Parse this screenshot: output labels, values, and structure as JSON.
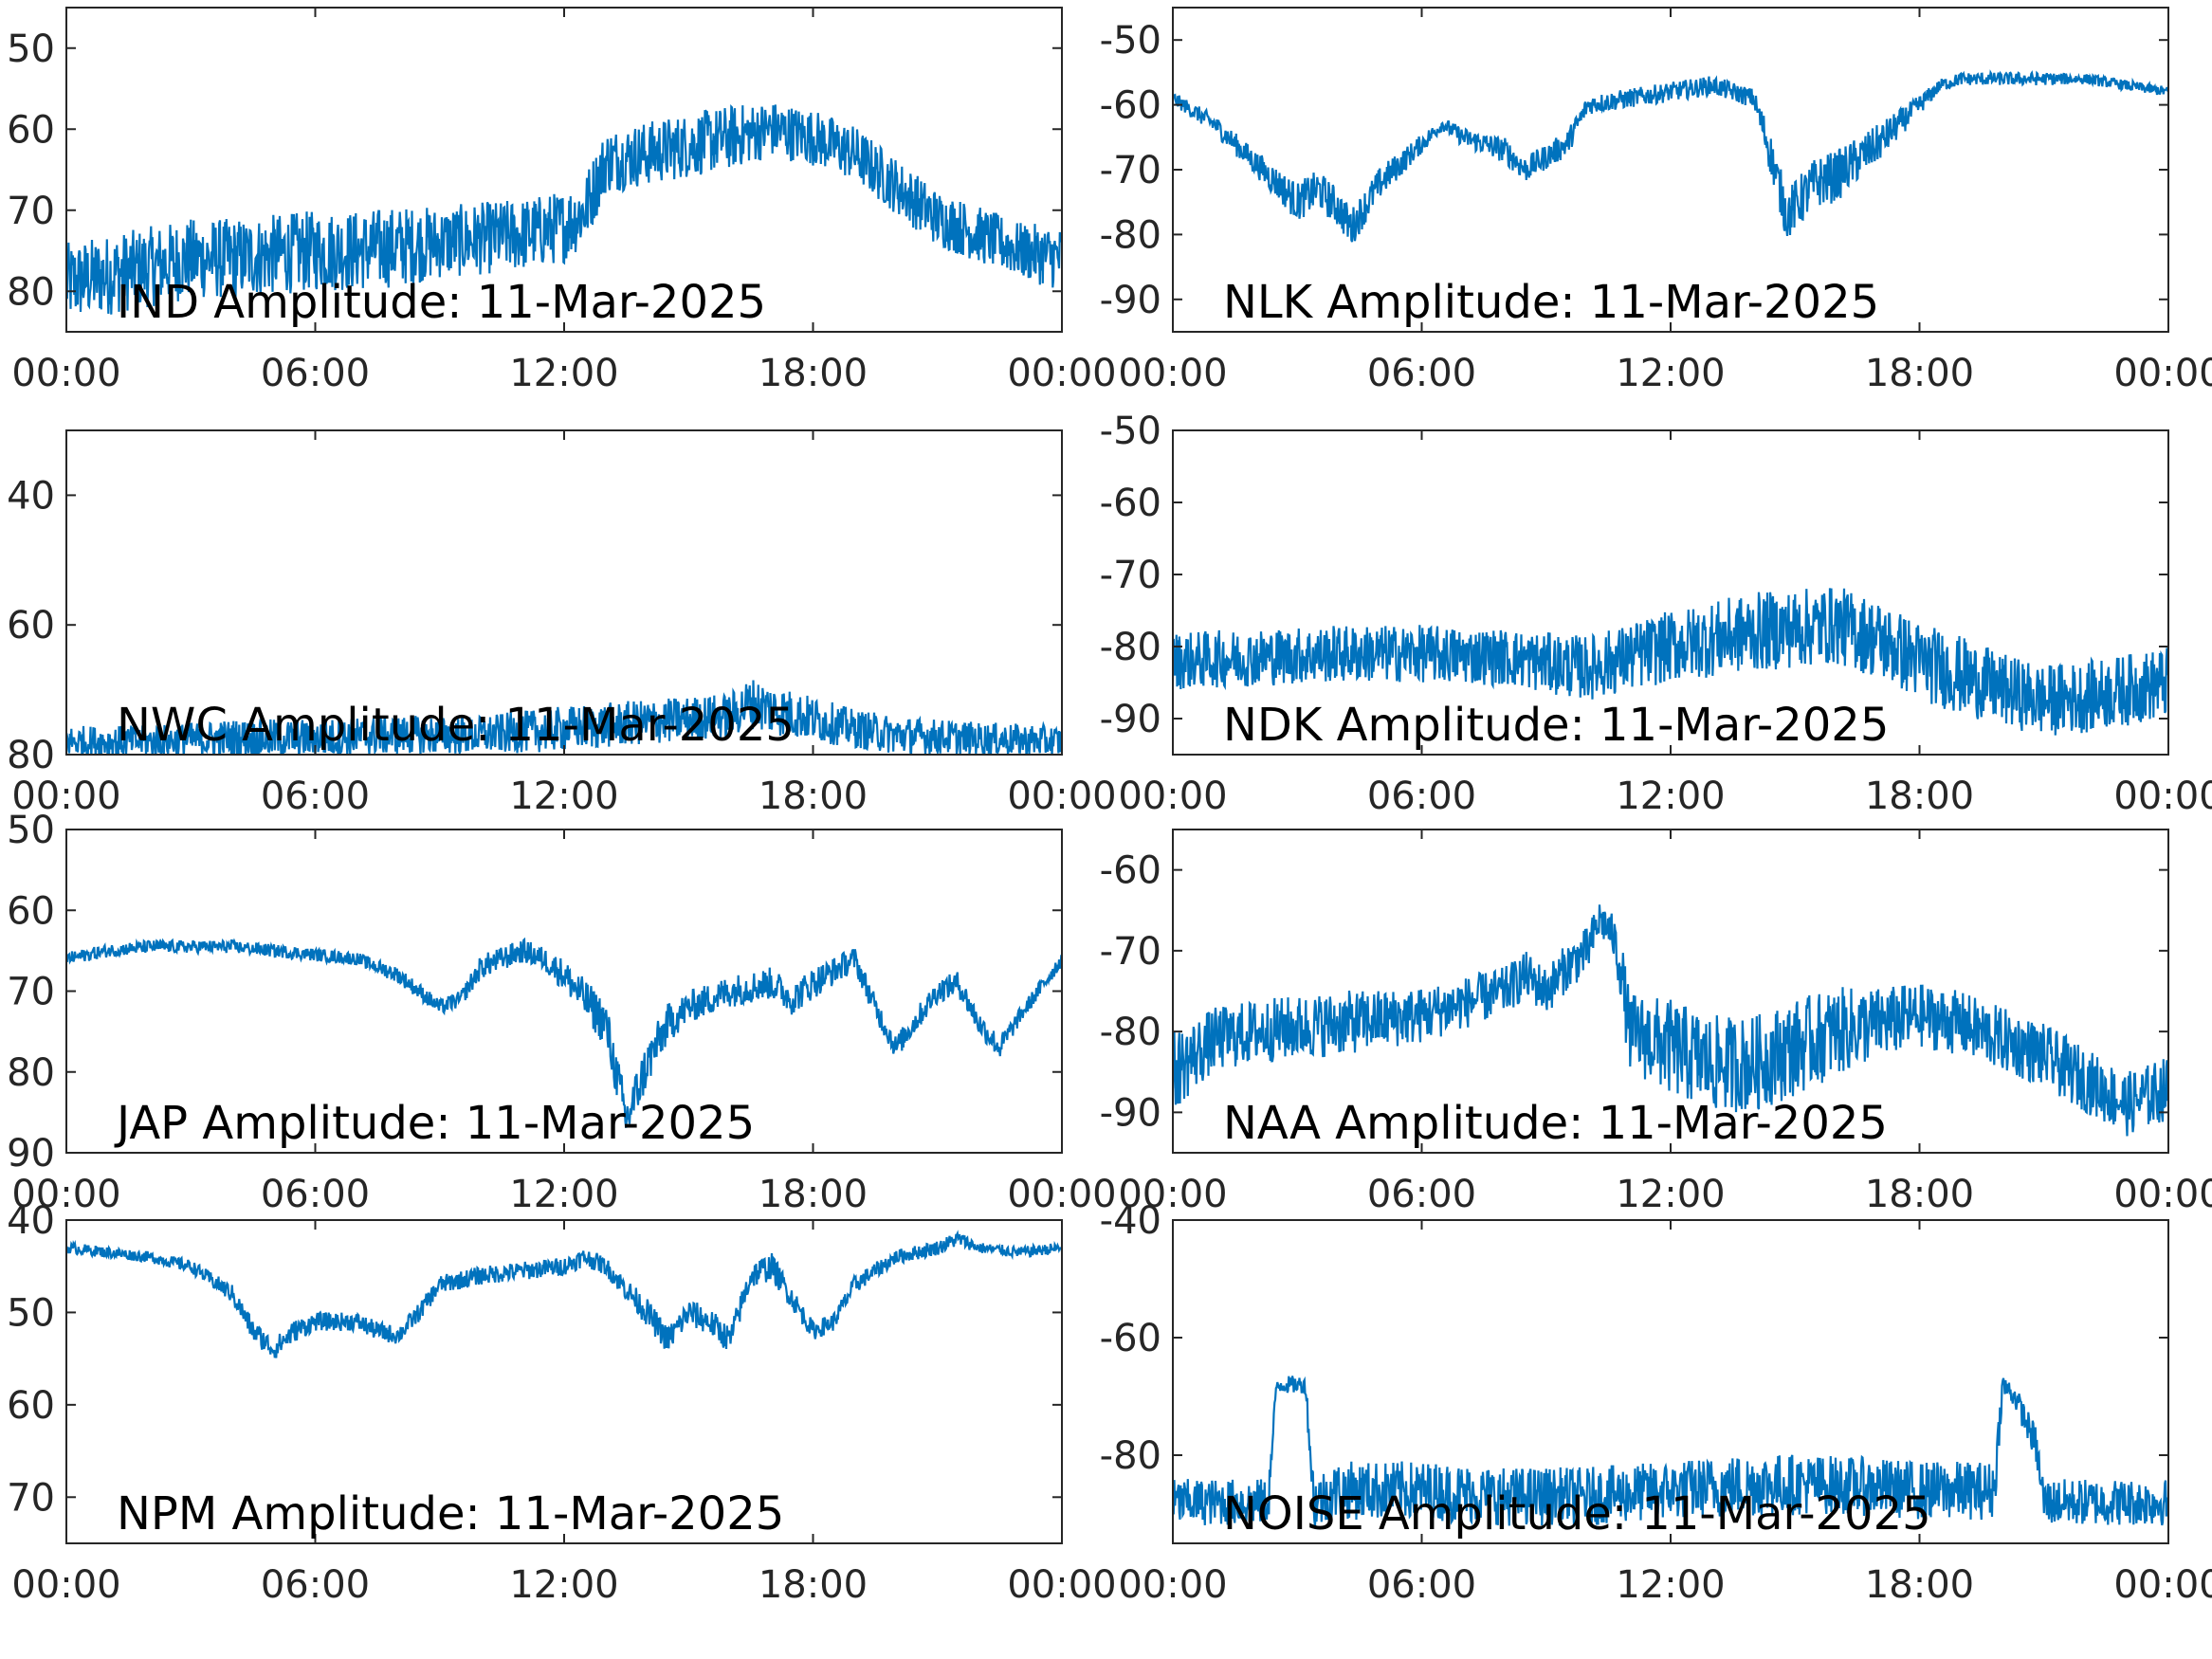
{
  "style": {
    "line_color": "#0072BD",
    "axes_color": "#262626",
    "background": "#ffffff"
  },
  "chart_data": [
    {
      "type": "line",
      "title": "IND Amplitude: 11-Mar-2025",
      "xlabel": "",
      "ylabel": "",
      "x_ticks": [
        "00:00",
        "06:00",
        "12:00",
        "18:00",
        "00:00"
      ],
      "xlim_hours": [
        0,
        24
      ],
      "ylim": [
        -85,
        -45
      ],
      "y_ticks": [
        -80,
        -70,
        -60,
        -50
      ],
      "y_tick_labels": [
        "80",
        "70",
        "60",
        "50"
      ],
      "series": [
        {
          "x_hours": [
            0,
            1,
            2,
            3,
            4,
            5,
            6,
            7,
            8,
            9,
            10,
            11,
            12,
            12.5,
            13,
            14,
            15,
            16,
            17,
            18,
            19,
            20,
            21,
            22,
            23,
            24
          ],
          "center": [
            -79,
            -78,
            -77,
            -76,
            -76,
            -75.5,
            -75,
            -75,
            -74.5,
            -74,
            -73.5,
            -73,
            -72,
            -70,
            -64,
            -63,
            -62,
            -61,
            -60,
            -61,
            -63,
            -67,
            -71,
            -73,
            -75,
            -76
          ],
          "spread": [
            5,
            5,
            5,
            5,
            5,
            5,
            5,
            5,
            5,
            4.5,
            4.5,
            4.5,
            4.5,
            4.5,
            4,
            4,
            4,
            4,
            3.5,
            3.5,
            3.5,
            3.5,
            3.5,
            3.5,
            3.5,
            4
          ]
        }
      ],
      "grid": false
    },
    {
      "type": "line",
      "title": "NLK Amplitude: 11-Mar-2025",
      "xlabel": "",
      "ylabel": "",
      "x_ticks": [
        "00:00",
        "06:00",
        "12:00",
        "18:00",
        "00:00"
      ],
      "xlim_hours": [
        0,
        24
      ],
      "ylim": [
        -95,
        -45
      ],
      "y_ticks": [
        -90,
        -80,
        -70,
        -60,
        -50
      ],
      "y_tick_labels": [
        "-90",
        "-80",
        "-70",
        "-60",
        "-50"
      ],
      "series": [
        {
          "x_hours": [
            0,
            1,
            2,
            3,
            3.5,
            4,
            4.3,
            5,
            6,
            6.5,
            7,
            8,
            8.5,
            9,
            9.5,
            10,
            11,
            12,
            13,
            14,
            14.3,
            14.8,
            15.5,
            16,
            17,
            18,
            18.5,
            19,
            20,
            21,
            22,
            23,
            24
          ],
          "center": [
            -59,
            -63,
            -69,
            -75,
            -73,
            -76,
            -79,
            -72,
            -66,
            -63,
            -65,
            -67,
            -70,
            -68,
            -66,
            -60,
            -59,
            -58,
            -57,
            -59,
            -65,
            -77,
            -72,
            -71,
            -66,
            -60,
            -57,
            -56,
            -56,
            -56,
            -56,
            -57,
            -58
          ],
          "spread": [
            1,
            1.5,
            2,
            3,
            3,
            3,
            3,
            2.5,
            1.5,
            1,
            1.5,
            2,
            2,
            2,
            2,
            1.5,
            1.5,
            1.5,
            1.5,
            1.5,
            3,
            4,
            4,
            4,
            3,
            1.5,
            1,
            1,
            1,
            1,
            0.8,
            0.8,
            0.8
          ]
        }
      ],
      "grid": false
    },
    {
      "type": "line",
      "title": "NWC Amplitude: 11-Mar-2025",
      "xlabel": "",
      "ylabel": "",
      "x_ticks": [
        "00:00",
        "06:00",
        "12:00",
        "18:00",
        "00:00"
      ],
      "xlim_hours": [
        0,
        24
      ],
      "ylim": [
        -80,
        -30
      ],
      "y_ticks": [
        -80,
        -60,
        -40
      ],
      "y_tick_labels": [
        "80",
        "60",
        "40"
      ],
      "series": [
        {
          "x_hours": [
            0,
            2,
            4,
            6,
            8,
            10,
            12,
            14,
            15,
            16,
            16.5,
            17,
            18,
            19,
            20,
            22,
            24
          ],
          "center": [
            -78,
            -78,
            -77.5,
            -77.5,
            -77,
            -77,
            -76,
            -75,
            -74.5,
            -74,
            -72,
            -73,
            -74.5,
            -76,
            -77,
            -77.5,
            -78
          ],
          "spread": [
            2.5,
            2.5,
            3,
            3,
            3,
            3,
            3.5,
            3.5,
            3.5,
            3.5,
            4,
            4,
            3.5,
            3,
            3,
            2.5,
            2.5
          ]
        }
      ],
      "grid": false
    },
    {
      "type": "line",
      "title": "NDK Amplitude: 11-Mar-2025",
      "xlabel": "",
      "ylabel": "",
      "x_ticks": [
        "00:00",
        "06:00",
        "12:00",
        "18:00",
        "00:00"
      ],
      "xlim_hours": [
        0,
        24
      ],
      "ylim": [
        -95,
        -50
      ],
      "y_ticks": [
        -90,
        -80,
        -70,
        -60,
        -50
      ],
      "y_tick_labels": [
        "-90",
        "-80",
        "-70",
        "-60",
        "-50"
      ],
      "series": [
        {
          "x_hours": [
            0,
            2,
            4,
            6,
            8,
            10,
            12,
            14,
            16,
            17,
            18,
            19,
            20,
            21,
            22,
            23,
            24
          ],
          "center": [
            -82,
            -81.5,
            -81,
            -81,
            -81.5,
            -83,
            -80,
            -78,
            -77,
            -79,
            -82,
            -84,
            -86,
            -87.5,
            -87,
            -86,
            -85
          ],
          "spread": [
            4,
            4,
            4,
            4,
            4,
            4.5,
            5,
            5.5,
            5.5,
            5.5,
            5.5,
            5.5,
            5,
            5,
            5,
            5,
            5
          ]
        }
      ],
      "grid": false
    },
    {
      "type": "line",
      "title": "JAP Amplitude: 11-Mar-2025",
      "xlabel": "",
      "ylabel": "",
      "x_ticks": [
        "00:00",
        "06:00",
        "12:00",
        "18:00",
        "00:00"
      ],
      "xlim_hours": [
        0,
        24
      ],
      "ylim": [
        -90,
        -50
      ],
      "y_ticks": [
        -90,
        -80,
        -70,
        -60,
        -50
      ],
      "y_tick_labels": [
        "90",
        "80",
        "70",
        "60",
        "50"
      ],
      "series": [
        {
          "x_hours": [
            0,
            1,
            2,
            3,
            4,
            5,
            6,
            7,
            8,
            9,
            9.5,
            10,
            11,
            11.5,
            12,
            13,
            13.5,
            14,
            14.5,
            15,
            16,
            17,
            17.5,
            18,
            19,
            19.5,
            20,
            21,
            21.5,
            22,
            22.5,
            23,
            24
          ],
          "center": [
            -66,
            -65,
            -64.5,
            -64.5,
            -64.5,
            -65,
            -65.5,
            -66,
            -68,
            -72,
            -71,
            -67,
            -65,
            -66,
            -68,
            -74,
            -86,
            -79,
            -74,
            -72,
            -70,
            -69,
            -71,
            -69,
            -66,
            -72,
            -77,
            -70,
            -69,
            -74,
            -77,
            -73,
            -66
          ],
          "spread": [
            0.8,
            0.8,
            0.8,
            0.8,
            0.8,
            0.8,
            0.8,
            0.8,
            1,
            1,
            1,
            1.5,
            1.5,
            1.5,
            2,
            3,
            3,
            3,
            2.5,
            2,
            2,
            2,
            2,
            2,
            1.5,
            1.5,
            1.5,
            1.5,
            1.5,
            1.5,
            1.5,
            1,
            1
          ]
        }
      ],
      "grid": false
    },
    {
      "type": "line",
      "title": "NAA Amplitude: 11-Mar-2025",
      "xlabel": "",
      "ylabel": "",
      "x_ticks": [
        "00:00",
        "06:00",
        "12:00",
        "18:00",
        "00:00"
      ],
      "xlim_hours": [
        0,
        24
      ],
      "ylim": [
        -95,
        -55
      ],
      "y_ticks": [
        -90,
        -80,
        -70,
        -60
      ],
      "y_tick_labels": [
        "-90",
        "-80",
        "-70",
        "-60"
      ],
      "series": [
        {
          "x_hours": [
            0,
            1,
            2,
            4,
            6,
            8,
            8.5,
            9,
            9.5,
            10,
            10.3,
            10.6,
            10.8,
            11,
            12,
            13,
            14,
            15,
            16,
            17,
            18,
            19,
            20,
            21,
            22,
            23,
            24
          ],
          "center": [
            -85,
            -81,
            -80,
            -79,
            -78,
            -75,
            -73,
            -75,
            -72,
            -70,
            -66,
            -68,
            -72,
            -80,
            -82,
            -84,
            -84,
            -82,
            -80,
            -79,
            -78,
            -79,
            -81,
            -83,
            -86,
            -89,
            -87
          ],
          "spread": [
            5,
            4,
            4,
            4,
            3.5,
            3,
            3,
            3,
            3,
            3,
            2.5,
            2.5,
            4,
            5,
            6,
            6,
            6,
            6,
            5.5,
            4.5,
            4,
            4,
            4,
            4,
            4,
            4,
            4
          ]
        }
      ],
      "grid": false
    },
    {
      "type": "line",
      "title": "NPM Amplitude: 11-Mar-2025",
      "xlabel": "",
      "ylabel": "",
      "x_ticks": [
        "00:00",
        "06:00",
        "12:00",
        "18:00",
        "00:00"
      ],
      "xlim_hours": [
        0,
        24
      ],
      "ylim": [
        -75,
        -40
      ],
      "y_ticks": [
        -70,
        -60,
        -50,
        -40
      ],
      "y_tick_labels": [
        "70",
        "60",
        "50",
        "40"
      ],
      "series": [
        {
          "x_hours": [
            0,
            1,
            2,
            3,
            4,
            4.5,
            5,
            5.5,
            6,
            7,
            7.5,
            8,
            8.5,
            9,
            10,
            11,
            12,
            12.5,
            13,
            14,
            14.5,
            15,
            15.5,
            16,
            16.5,
            17,
            18,
            18.5,
            19,
            20,
            21,
            21.5,
            22,
            23,
            24
          ],
          "center": [
            -43,
            -43.5,
            -44,
            -45,
            -48,
            -52,
            -54,
            -52,
            -51,
            -51,
            -52,
            -52.5,
            -50,
            -47,
            -46,
            -45.5,
            -45,
            -44,
            -45,
            -50,
            -53,
            -50,
            -51,
            -53,
            -46,
            -45,
            -52,
            -51,
            -47,
            -44,
            -43,
            -42,
            -43,
            -43.5,
            -43
          ],
          "spread": [
            0.6,
            0.6,
            0.6,
            0.7,
            1,
            1.2,
            1.2,
            1.2,
            1,
            1,
            1,
            1,
            1,
            1,
            1,
            1,
            1,
            1,
            1,
            1.5,
            1.5,
            1.5,
            1.5,
            1.5,
            1.5,
            1.5,
            1,
            1,
            1,
            0.8,
            0.8,
            0.8,
            0.6,
            0.6,
            0.6
          ]
        }
      ],
      "grid": false
    },
    {
      "type": "line",
      "title": "NOISE Amplitude: 11-Mar-2025",
      "xlabel": "",
      "ylabel": "",
      "x_ticks": [
        "00:00",
        "06:00",
        "12:00",
        "18:00",
        "00:00"
      ],
      "xlim_hours": [
        0,
        24
      ],
      "ylim": [
        -95,
        -40
      ],
      "y_ticks": [
        -80,
        -60,
        -40
      ],
      "y_tick_labels": [
        "-80",
        "-60",
        "-40"
      ],
      "series": [
        {
          "x_hours": [
            0,
            2,
            2.3,
            2.5,
            3,
            3.2,
            3.4,
            4,
            6,
            8,
            10,
            12,
            14,
            16,
            18,
            19.8,
            20,
            20.3,
            20.8,
            21,
            22,
            24
          ],
          "center": [
            -88,
            -88,
            -88,
            -68,
            -68,
            -68,
            -88,
            -86,
            -86,
            -87,
            -87,
            -86,
            -85,
            -85,
            -86,
            -86,
            -68,
            -70,
            -78,
            -88,
            -88,
            -88
          ],
          "spread": [
            4,
            4,
            4,
            1.5,
            1.5,
            1.5,
            5,
            5,
            5,
            5,
            5,
            5,
            5.5,
            5,
            5,
            5,
            2,
            2,
            3,
            4,
            4,
            4
          ]
        }
      ],
      "grid": false
    }
  ]
}
